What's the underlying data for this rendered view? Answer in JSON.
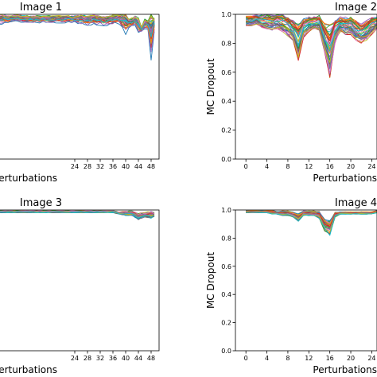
{
  "chart_data": [
    {
      "type": "line",
      "panel": "top-left",
      "title": "Image 1",
      "xlabel": "Perturbations",
      "ylabel": "",
      "xlim": [
        -2,
        50.5
      ],
      "ylim": [
        0.0,
        1.0
      ],
      "xticks": [
        24,
        28,
        32,
        36,
        40,
        44,
        48
      ],
      "yticks": [],
      "grid": false,
      "legend": "none",
      "series_count": 40,
      "envelope": {
        "x": [
          0,
          2,
          4,
          6,
          8,
          10,
          12,
          14,
          16,
          18,
          20,
          22,
          24,
          26,
          28,
          30,
          32,
          34,
          36,
          38,
          40,
          41,
          42,
          43,
          44,
          45,
          46,
          47,
          48,
          48.5,
          49
        ],
        "mean": [
          0.97,
          0.97,
          0.97,
          0.98,
          0.97,
          0.97,
          0.97,
          0.97,
          0.97,
          0.97,
          0.97,
          0.97,
          0.97,
          0.97,
          0.96,
          0.97,
          0.96,
          0.96,
          0.97,
          0.97,
          0.95,
          0.94,
          0.95,
          0.96,
          0.93,
          0.9,
          0.94,
          0.93,
          0.88,
          0.91,
          0.94
        ],
        "min": [
          0.93,
          0.93,
          0.94,
          0.95,
          0.94,
          0.94,
          0.94,
          0.94,
          0.94,
          0.94,
          0.94,
          0.94,
          0.94,
          0.93,
          0.92,
          0.93,
          0.92,
          0.92,
          0.93,
          0.93,
          0.86,
          0.9,
          0.91,
          0.92,
          0.85,
          0.88,
          0.9,
          0.89,
          0.68,
          0.8,
          0.88
        ]
      }
    },
    {
      "type": "line",
      "panel": "top-right",
      "title": "Image 2",
      "xlabel": "Perturbations",
      "ylabel": "MC Dropout",
      "xlim": [
        -2,
        25
      ],
      "ylim": [
        0.0,
        1.0
      ],
      "xticks": [
        0,
        4,
        8,
        12,
        16,
        20,
        24
      ],
      "yticks": [
        0.0,
        0.2,
        0.4,
        0.6,
        0.8,
        1.0
      ],
      "grid": false,
      "legend": "none",
      "series_count": 40,
      "envelope": {
        "x": [
          0,
          1,
          2,
          3,
          4,
          5,
          6,
          7,
          8,
          9,
          10,
          11,
          12,
          13,
          14,
          15,
          16,
          17,
          18,
          19,
          20,
          21,
          22,
          23,
          24,
          25
        ],
        "mean": [
          0.96,
          0.96,
          0.97,
          0.96,
          0.96,
          0.95,
          0.96,
          0.95,
          0.93,
          0.9,
          0.83,
          0.92,
          0.94,
          0.95,
          0.95,
          0.86,
          0.78,
          0.9,
          0.94,
          0.93,
          0.93,
          0.9,
          0.88,
          0.9,
          0.93,
          0.95
        ],
        "min": [
          0.92,
          0.92,
          0.93,
          0.91,
          0.9,
          0.89,
          0.9,
          0.88,
          0.85,
          0.82,
          0.68,
          0.84,
          0.88,
          0.9,
          0.89,
          0.74,
          0.56,
          0.8,
          0.88,
          0.86,
          0.86,
          0.82,
          0.8,
          0.82,
          0.86,
          0.9
        ]
      }
    },
    {
      "type": "line",
      "panel": "bottom-left",
      "title": "Image 3",
      "xlabel": "Perturbations",
      "ylabel": "",
      "xlim": [
        -2,
        50.5
      ],
      "ylim": [
        0.0,
        1.0
      ],
      "xticks": [
        24,
        28,
        32,
        36,
        40,
        44,
        48
      ],
      "yticks": [],
      "grid": false,
      "legend": "none",
      "series_count": 40,
      "envelope": {
        "x": [
          0,
          4,
          8,
          12,
          16,
          20,
          24,
          28,
          32,
          36,
          38,
          40,
          42,
          44,
          46,
          48,
          49
        ],
        "mean": [
          0.99,
          0.99,
          0.99,
          0.99,
          0.99,
          0.99,
          0.99,
          0.99,
          0.99,
          0.99,
          0.98,
          0.98,
          0.98,
          0.96,
          0.97,
          0.97,
          0.97
        ],
        "min": [
          0.98,
          0.98,
          0.98,
          0.98,
          0.98,
          0.98,
          0.98,
          0.98,
          0.98,
          0.98,
          0.97,
          0.96,
          0.96,
          0.93,
          0.95,
          0.94,
          0.95
        ]
      }
    },
    {
      "type": "line",
      "panel": "bottom-right",
      "title": "Image 4",
      "xlabel": "Perturbations",
      "ylabel": "MC Dropout",
      "xlim": [
        -2,
        25
      ],
      "ylim": [
        0.0,
        1.0
      ],
      "xticks": [
        0,
        4,
        8,
        12,
        16,
        20,
        24
      ],
      "yticks": [
        0.0,
        0.2,
        0.4,
        0.6,
        0.8,
        1.0
      ],
      "grid": false,
      "legend": "none",
      "series_count": 40,
      "envelope": {
        "x": [
          0,
          1,
          2,
          3,
          4,
          5,
          6,
          7,
          8,
          9,
          10,
          11,
          12,
          13,
          14,
          15,
          16,
          17,
          18,
          19,
          20,
          21,
          22,
          23,
          24,
          25
        ],
        "mean": [
          0.99,
          0.99,
          0.99,
          0.99,
          0.99,
          0.99,
          0.98,
          0.98,
          0.98,
          0.97,
          0.95,
          0.98,
          0.98,
          0.98,
          0.97,
          0.9,
          0.88,
          0.97,
          0.98,
          0.98,
          0.98,
          0.98,
          0.98,
          0.98,
          0.98,
          0.99
        ],
        "min": [
          0.98,
          0.98,
          0.98,
          0.98,
          0.98,
          0.97,
          0.97,
          0.96,
          0.96,
          0.95,
          0.92,
          0.96,
          0.96,
          0.96,
          0.94,
          0.85,
          0.82,
          0.95,
          0.97,
          0.97,
          0.97,
          0.97,
          0.97,
          0.97,
          0.97,
          0.98
        ]
      }
    }
  ]
}
